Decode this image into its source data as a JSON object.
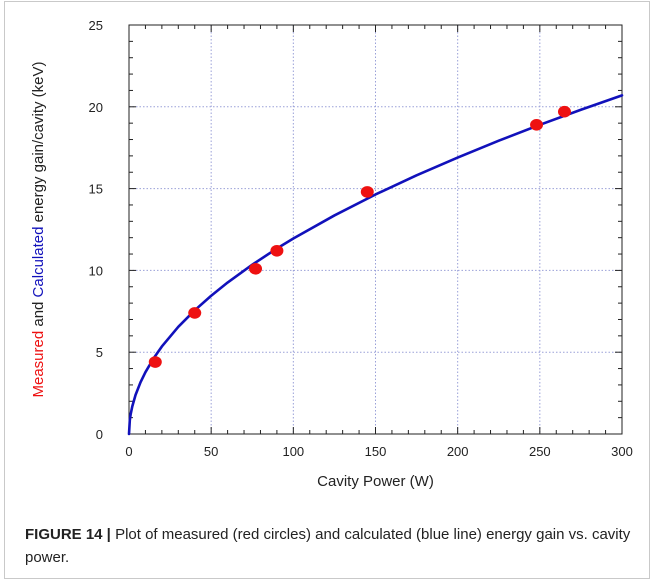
{
  "figure": {
    "label": "FIGURE 14 |",
    "caption": "Plot of measured (red circles) and calculated (blue line) energy gain vs. cavity power."
  },
  "colors": {
    "measured": "#ee1111",
    "calculated": "#1111bb",
    "grid": "#9aa0d8",
    "axis": "#222222"
  },
  "chart_data": {
    "type": "scatter",
    "title": "",
    "xlabel": "Cavity Power (W)",
    "ylabel_parts": [
      {
        "text": "Measured",
        "color": "#ee1111"
      },
      {
        "text": " and ",
        "color": "#222222"
      },
      {
        "text": "Calculated",
        "color": "#1111bb"
      },
      {
        "text": " energy gain/cavity (keV)",
        "color": "#222222"
      }
    ],
    "xlim": [
      0,
      300
    ],
    "ylim": [
      0,
      25
    ],
    "xticks": [
      0,
      50,
      100,
      150,
      200,
      250,
      300
    ],
    "yticks": [
      0,
      5,
      10,
      15,
      20,
      25
    ],
    "grid": true,
    "series": [
      {
        "kind": "points",
        "x": [
          16,
          40,
          77,
          90,
          145,
          248,
          265
        ],
        "y": [
          4.4,
          7.4,
          10.1,
          11.2,
          14.8,
          18.9,
          19.7
        ]
      },
      {
        "kind": "line",
        "x": [
          0,
          0.5,
          1,
          2,
          4,
          7,
          10,
          15,
          20,
          30,
          40,
          50,
          60,
          75,
          90,
          100,
          125,
          150,
          175,
          200,
          225,
          250,
          275,
          300
        ],
        "y": [
          0,
          0.85,
          1.2,
          1.69,
          2.39,
          3.16,
          3.78,
          4.63,
          5.35,
          6.55,
          7.56,
          8.45,
          9.26,
          10.35,
          11.34,
          11.95,
          13.36,
          14.64,
          15.81,
          16.9,
          17.93,
          18.9,
          19.82,
          20.7
        ]
      }
    ]
  }
}
